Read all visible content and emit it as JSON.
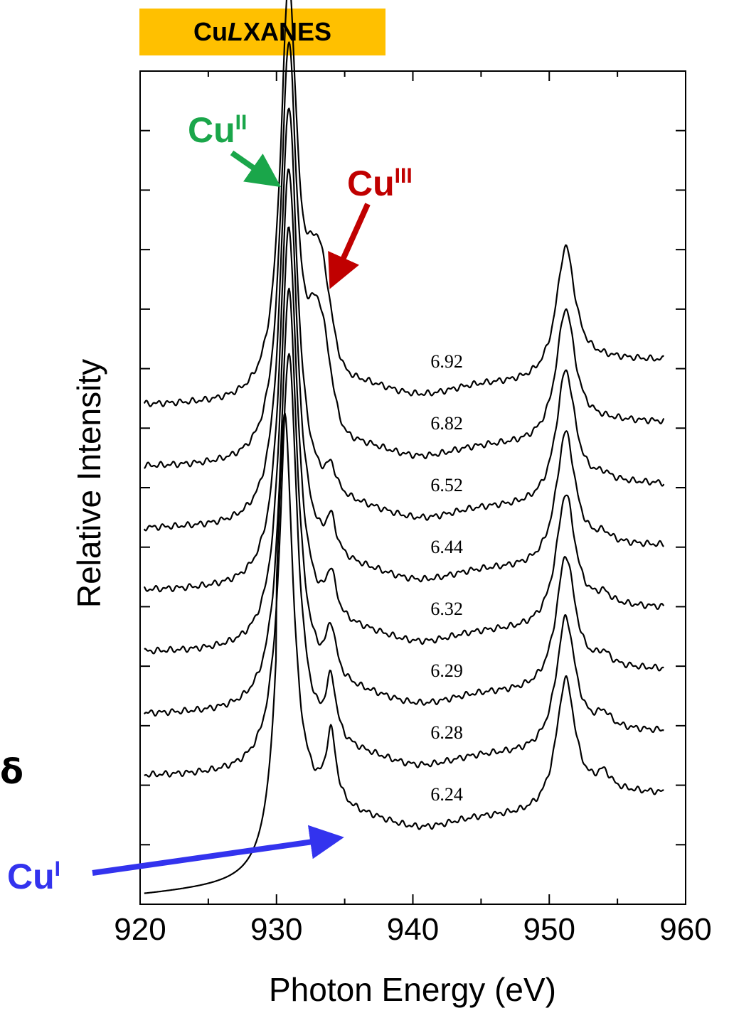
{
  "badge": {
    "prefix": "Cu ",
    "italic": "L",
    "suffix": " XANES",
    "color": "#ffc000"
  },
  "left_fragment": "δ",
  "chart_data": {
    "type": "line",
    "xlabel": "Photon Energy (eV)",
    "ylabel": "Relative Intensity",
    "xlim": [
      920,
      960
    ],
    "x_ticks": [
      "920",
      "930",
      "940",
      "950",
      "960"
    ],
    "y_ticks_labeled": false,
    "series": [
      {
        "name": "6.92",
        "baseline": 7,
        "l3": 930.9,
        "cu3": true,
        "cu1": 0.0
      },
      {
        "name": "6.82",
        "baseline": 6,
        "l3": 930.9,
        "cu3": true,
        "cu1": 0.0
      },
      {
        "name": "6.52",
        "baseline": 5,
        "l3": 930.9,
        "cu3": false,
        "cu1": 0.35
      },
      {
        "name": "6.44",
        "baseline": 4,
        "l3": 930.9,
        "cu3": false,
        "cu1": 0.5
      },
      {
        "name": "6.32",
        "baseline": 3,
        "l3": 930.9,
        "cu3": false,
        "cu1": 0.6
      },
      {
        "name": "6.29",
        "baseline": 2,
        "l3": 930.9,
        "cu3": false,
        "cu1": 0.7
      },
      {
        "name": "6.28",
        "baseline": 1,
        "l3": 930.9,
        "cu3": false,
        "cu1": 0.85
      },
      {
        "name": "6.24",
        "baseline": 0,
        "l3": 930.6,
        "cu3": false,
        "cu1": 1.0
      }
    ],
    "annotations": [
      {
        "label": "Cu",
        "sup": "II",
        "color": "#1aa64a",
        "points_to_x": 930.7
      },
      {
        "label": "Cu",
        "sup": "III",
        "color": "#c00000",
        "points_to_x": 933.3
      },
      {
        "label": "Cu",
        "sup": "I",
        "color": "#3333ee",
        "points_to_x": 934.0
      }
    ]
  }
}
